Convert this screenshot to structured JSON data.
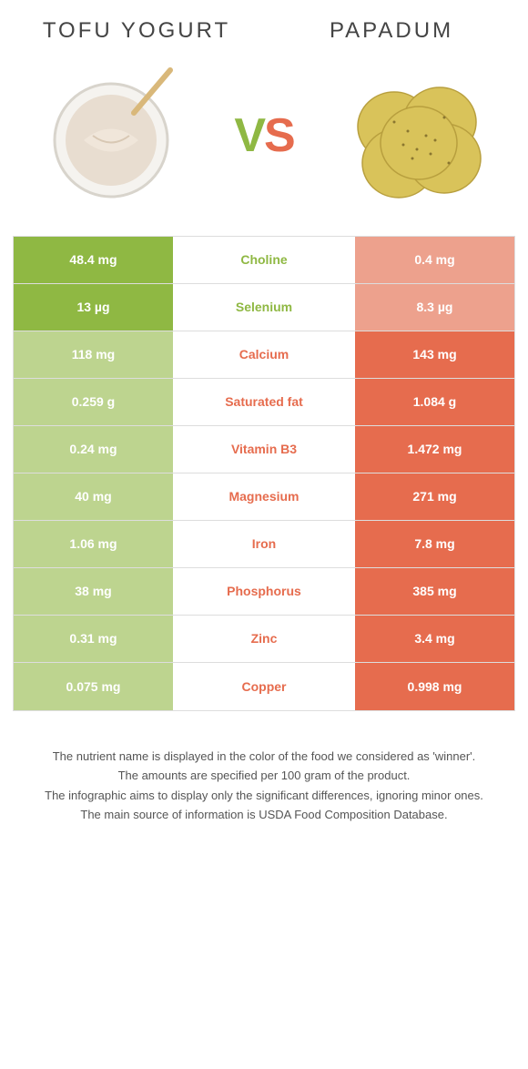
{
  "header": {
    "left_title": "Tofu yogurt",
    "right_title": "Papadum",
    "vs_v": "V",
    "vs_s": "S"
  },
  "colors": {
    "green_strong": "#8fb843",
    "green_weak": "#bdd48f",
    "orange_strong": "#e66c4e",
    "orange_weak": "#eda18d",
    "text_dark": "#444"
  },
  "rows": [
    {
      "left": "48.4 mg",
      "label": "Choline",
      "right": "0.4 mg",
      "winner": "left"
    },
    {
      "left": "13 µg",
      "label": "Selenium",
      "right": "8.3 µg",
      "winner": "left"
    },
    {
      "left": "118 mg",
      "label": "Calcium",
      "right": "143 mg",
      "winner": "right"
    },
    {
      "left": "0.259 g",
      "label": "Saturated fat",
      "right": "1.084 g",
      "winner": "right"
    },
    {
      "left": "0.24 mg",
      "label": "Vitamin B3",
      "right": "1.472 mg",
      "winner": "right"
    },
    {
      "left": "40 mg",
      "label": "Magnesium",
      "right": "271 mg",
      "winner": "right"
    },
    {
      "left": "1.06 mg",
      "label": "Iron",
      "right": "7.8 mg",
      "winner": "right"
    },
    {
      "left": "38 mg",
      "label": "Phosphorus",
      "right": "385 mg",
      "winner": "right"
    },
    {
      "left": "0.31 mg",
      "label": "Zinc",
      "right": "3.4 mg",
      "winner": "right"
    },
    {
      "left": "0.075 mg",
      "label": "Copper",
      "right": "0.998 mg",
      "winner": "right"
    }
  ],
  "footer": {
    "line1": "The nutrient name is displayed in the color of the food we considered as 'winner'.",
    "line2": "The amounts are specified per 100 gram of the product.",
    "line3": "The infographic aims to display only the significant differences, ignoring minor ones.",
    "line4": "The main source of information is USDA Food Composition Database."
  }
}
